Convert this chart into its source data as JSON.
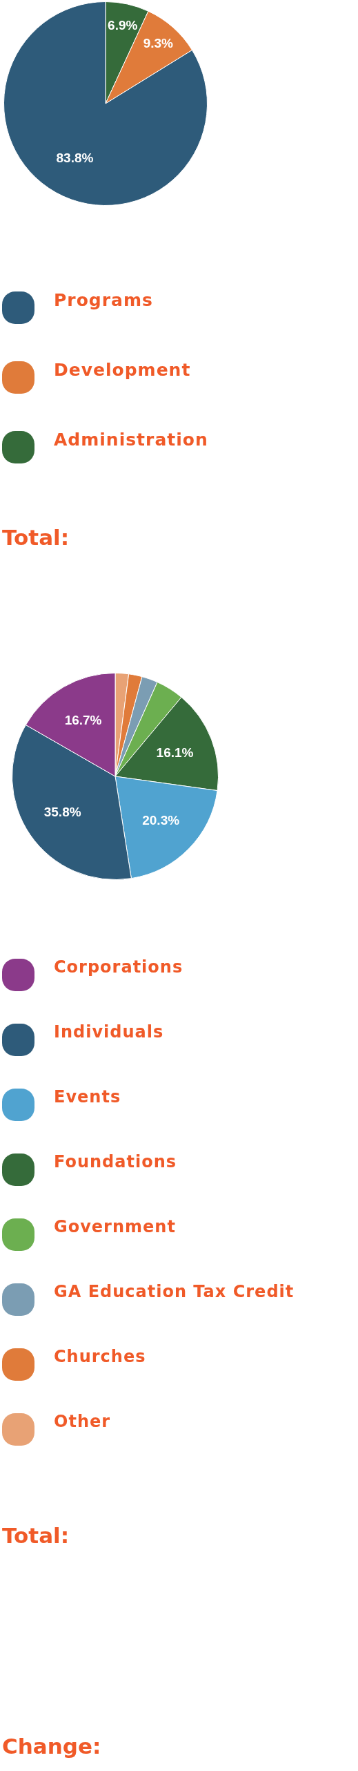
{
  "chart_data": [
    {
      "type": "pie",
      "categories": [
        "Programs",
        "Development",
        "Administration"
      ],
      "values": [
        83.8,
        9.3,
        6.9
      ],
      "colors": [
        "#2e5b7a",
        "#e07b3a",
        "#356b3a"
      ],
      "value_labels": [
        "83.8%",
        "9.3%",
        "6.9%"
      ],
      "legend": "bottom",
      "annotations": [
        "Total:"
      ]
    },
    {
      "type": "pie",
      "categories": [
        "Corporations",
        "Individuals",
        "Events",
        "Foundations",
        "Government",
        "GA Education Tax Credit",
        "Churches",
        "Other"
      ],
      "values": [
        16.7,
        35.8,
        20.3,
        16.1,
        4.4,
        2.5,
        2.1,
        2.1
      ],
      "colors": [
        "#8b3a8a",
        "#2e5b7a",
        "#50a3d0",
        "#356b3a",
        "#6caf50",
        "#7b9db3",
        "#e07b3a",
        "#e8a275"
      ],
      "value_labels": [
        "16.7%",
        "35.8%",
        "20.3%",
        "16.1%",
        null,
        null,
        null,
        null
      ],
      "legend": "bottom",
      "annotations": [
        "Total:",
        "Change:"
      ]
    }
  ]
}
